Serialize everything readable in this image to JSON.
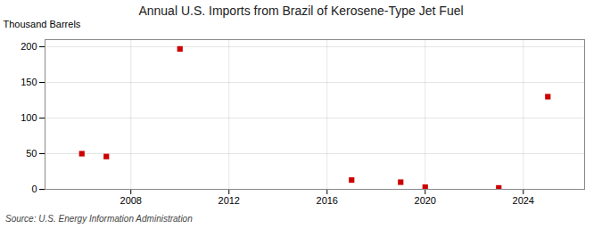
{
  "chart_data": {
    "type": "scatter",
    "title": "Annual U.S. Imports from Brazil of Kerosene-Type Jet Fuel",
    "ylabel": "Thousand Barrels",
    "x": [
      2006,
      2007,
      2010,
      2017,
      2019,
      2020,
      2023,
      2025
    ],
    "values": [
      50,
      46,
      197,
      13,
      10,
      3,
      2,
      130
    ],
    "color": "#cc0000",
    "marker": "square",
    "xlim": [
      2004.5,
      2026.5
    ],
    "xticks": [
      2008,
      2012,
      2016,
      2020,
      2024
    ],
    "ylim": [
      0,
      210
    ],
    "yticks": [
      0,
      50,
      100,
      150,
      200
    ],
    "grid": true,
    "annotations": [
      "Source: U.S. Energy Information Administration"
    ]
  }
}
